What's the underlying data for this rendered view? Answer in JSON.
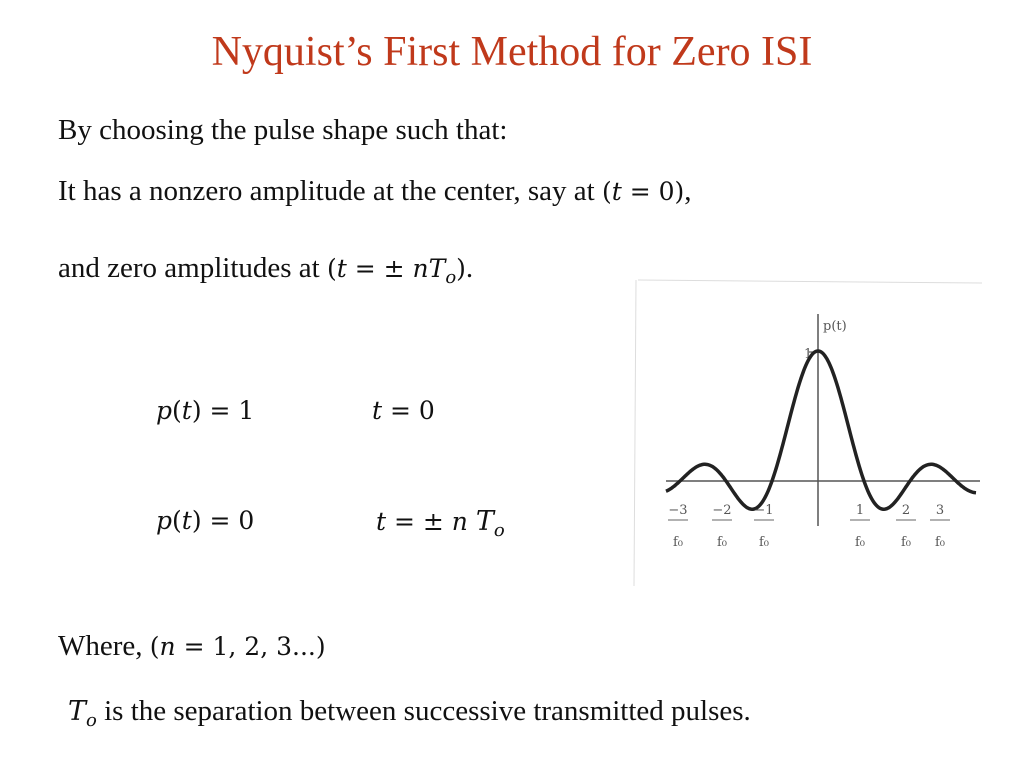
{
  "slide": {
    "title": "Nyquist’s First Method for Zero ISI",
    "title_color": "#c0391b",
    "line1": "By choosing the pulse shape such that:",
    "line2": {
      "text": "It has a nonzero amplitude at the center, say at",
      "cond_open": "(",
      "cond_t": "t",
      "cond_rest": " = 0)",
      "tail": ","
    },
    "line3": {
      "text": "and zero amplitudes at",
      "cond_open": "(",
      "cond_t": "t",
      "cond_mid": " = ±  ",
      "cond_n": "nT",
      "cond_sub": "o",
      "cond_close": ")",
      "tail": "."
    },
    "eq1": {
      "p": "p",
      "mid": "(",
      "t": "t",
      "rhs": ") = 1",
      "cond_t": "t",
      "cond_rhs": " = 0"
    },
    "eq2": {
      "p": "p",
      "mid": "(",
      "t": "t",
      "rhs": ") = 0",
      "cond_t": "t",
      "cond_rhs": " = ±  ",
      "cond_n": "n",
      "cond_T": "T",
      "cond_sub": "o"
    },
    "where": {
      "text": "Where,",
      "open": "(",
      "n": "n",
      "rest": " = 1,  2,  3...)"
    },
    "last": {
      "sym": "T",
      "sub": "o",
      "text": "is the separation between successive transmitted pulses."
    }
  },
  "figure": {
    "y_label": "p(t)",
    "peak_mark": "1",
    "x_ticks": [
      {
        "num": "−3",
        "den": "f₀"
      },
      {
        "num": "−2",
        "den": "f₀"
      },
      {
        "num": "−1",
        "den": "f₀"
      },
      {
        "num": "1",
        "den": "f₀"
      },
      {
        "num": "2",
        "den": "f₀"
      },
      {
        "num": "3",
        "den": "f₀"
      }
    ]
  }
}
